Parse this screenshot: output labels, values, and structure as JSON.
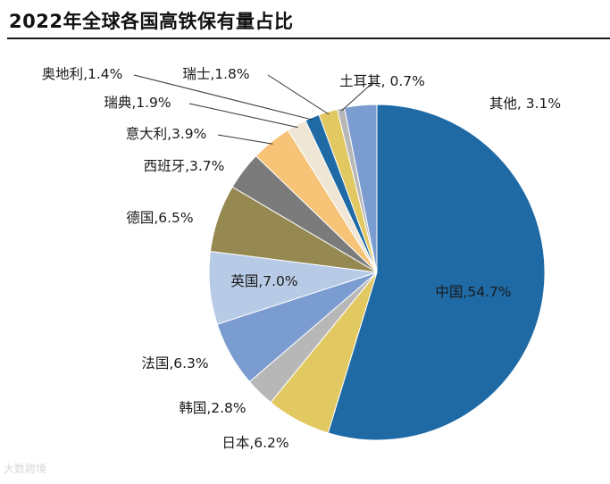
{
  "header": {
    "title": "2022年全球各国高铁保有量占比"
  },
  "watermark": "大数跨境",
  "chart_data": {
    "type": "pie",
    "title": "2022年全球各国高铁保有量占比",
    "unit": "%",
    "start": "12 o'clock, clockwise",
    "slices": [
      {
        "name": "中国",
        "value": 54.7,
        "label": "中国,54.7%",
        "color": "#1f6aa5"
      },
      {
        "name": "日本",
        "value": 6.2,
        "label": "日本,6.2%",
        "color": "#e2c860"
      },
      {
        "name": "韩国",
        "value": 2.8,
        "label": "韩国,2.8%",
        "color": "#b7b7b7"
      },
      {
        "name": "法国",
        "value": 6.3,
        "label": "法国,6.3%",
        "color": "#7b9cd0"
      },
      {
        "name": "英国",
        "value": 7.0,
        "label": "英国,7.0%",
        "color": "#b8cbe6"
      },
      {
        "name": "德国",
        "value": 6.5,
        "label": "德国,6.5%",
        "color": "#958850"
      },
      {
        "name": "西班牙",
        "value": 3.7,
        "label": "西班牙,3.7%",
        "color": "#7b7b7b"
      },
      {
        "name": "意大利",
        "value": 3.9,
        "label": "意大利,3.9%",
        "color": "#f6c377"
      },
      {
        "name": "瑞典",
        "value": 1.9,
        "label": "瑞典,1.9%",
        "color": "#efe6d5"
      },
      {
        "name": "奥地利",
        "value": 1.4,
        "label": "奥地利,1.4%",
        "color": "#1f6aa5"
      },
      {
        "name": "瑞士",
        "value": 1.8,
        "label": "瑞士,1.8%",
        "color": "#e2c860"
      },
      {
        "name": "土耳其",
        "value": 0.7,
        "label": "土耳其, 0.7%",
        "color": "#b7b7b7"
      },
      {
        "name": "其他",
        "value": 3.1,
        "label": "其他, 3.1%",
        "color": "#7b9cd0"
      }
    ]
  }
}
